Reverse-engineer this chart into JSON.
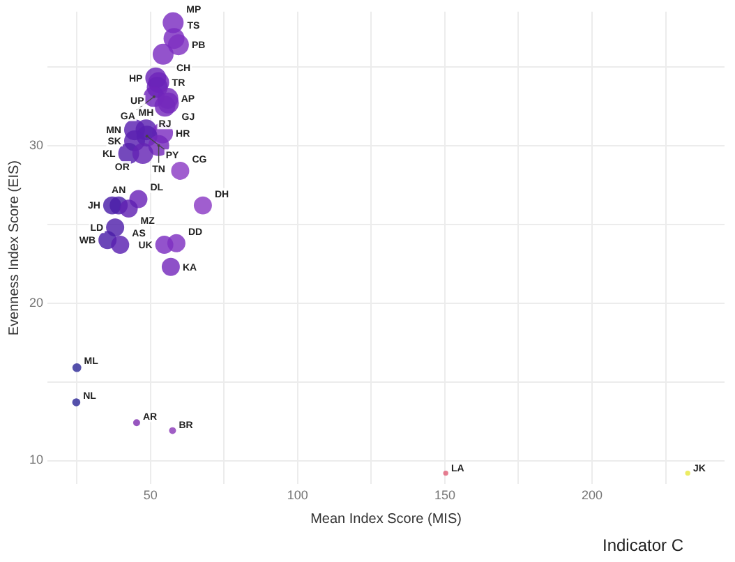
{
  "chart_data": {
    "type": "bubble",
    "xlabel": "Mean Index Score (MIS)",
    "ylabel": "Evenness Index Score (EIS)",
    "legend_title": "Indicator C",
    "xlim": [
      15,
      245
    ],
    "ylim": [
      8.5,
      38.5
    ],
    "xticks": [
      {
        "value": 25,
        "label": null
      },
      50,
      {
        "value": 75,
        "label": null
      },
      100,
      {
        "value": 125,
        "label": null
      },
      150,
      {
        "value": 175,
        "label": null
      },
      200,
      {
        "value": 225,
        "label": null
      }
    ],
    "yticks": [
      {
        "value": 15,
        "label": null
      },
      10,
      20,
      {
        "value": 25,
        "label": null
      },
      30,
      {
        "value": 35,
        "label": null
      }
    ],
    "grid": true,
    "legend": false,
    "series": [
      {
        "x": [
          57.7,
          58,
          59.5,
          54.3,
          51.8,
          52.8,
          52.3,
          55.9,
          51.2,
          56.1,
          54.9,
          44.6,
          48.5,
          54.1,
          48.8,
          44.6,
          52.8,
          42.6,
          47.4,
          60.1,
          45.9,
          37,
          39.2,
          42.6,
          67.8,
          38,
          35.4,
          39.7,
          54.7,
          58.8,
          56.9,
          25,
          24.8,
          45.3,
          57.5,
          150.3,
          232.5
        ],
        "values": [
          37.8,
          36.8,
          36.4,
          35.8,
          34.3,
          34,
          33.7,
          33,
          33.1,
          32.7,
          32.5,
          31,
          31,
          30.8,
          30.6,
          30.3,
          30,
          29.5,
          29.5,
          28.4,
          26.6,
          26.2,
          26.2,
          26,
          26.2,
          24.8,
          24,
          23.7,
          23.7,
          23.8,
          22.3,
          15.9,
          13.7,
          12.4,
          11.9,
          9.2,
          9.2
        ],
        "sizes": [
          1,
          1,
          1,
          1,
          1,
          1,
          1,
          1,
          1,
          1,
          1,
          1,
          1,
          1,
          1,
          1,
          1,
          1,
          1,
          0.75,
          0.75,
          0.75,
          0.75,
          0.75,
          0.75,
          0.75,
          0.75,
          0.75,
          0.75,
          0.75,
          0.75,
          0.18,
          0.15,
          0.11,
          0.11,
          0.06,
          0.06
        ],
        "colors": [
          "#7a2cc0",
          "#7a2cc0",
          "#7e30c0",
          "#7a2cc0",
          "#6a22b8",
          "#6e24ba",
          "#6a22b8",
          "#7428bc",
          "#6e24ba",
          "#7428bc",
          "#7428bc",
          "#5a20b0",
          "#5a20b0",
          "#7a2cc0",
          "#5a20b0",
          "#5a20b0",
          "#7428bc",
          "#5520ad",
          "#6424b4",
          "#8a3ac4",
          "#6a22b8",
          "#4a1ea8",
          "#4a1ea8",
          "#6020b2",
          "#8a3ac4",
          "#5020aa",
          "#4a1ea8",
          "#5a20b0",
          "#7a2cc0",
          "#7e30c0",
          "#7428bc",
          "#2e2a98",
          "#2e2a98",
          "#8030b0",
          "#8a3ab8",
          "#e06078",
          "#e8e840"
        ]
      }
    ],
    "annotations": [
      {
        "text": "MP",
        "x": 57.7,
        "y": 37.8
      },
      {
        "text": "TS",
        "x": 58,
        "y": 36.8
      },
      {
        "text": "PB",
        "x": 59.5,
        "y": 36.4
      },
      {
        "text": "CH",
        "x": 54.3,
        "y": 35.8
      },
      {
        "text": "HP",
        "x": 51.8,
        "y": 34.3
      },
      {
        "text": "TR",
        "x": 52.8,
        "y": 34
      },
      {
        "text": "UP",
        "x": 52.3,
        "y": 33.7
      },
      {
        "text": "AP",
        "x": 55.9,
        "y": 33
      },
      {
        "text": "GA",
        "x": 51.2,
        "y": 33.1
      },
      {
        "text": "GJ",
        "x": 56.1,
        "y": 32.7
      },
      {
        "text": "RJ",
        "x": 54.9,
        "y": 32.5
      },
      {
        "text": "MN",
        "x": 44.6,
        "y": 31
      },
      {
        "text": "MH",
        "x": 48.5,
        "y": 31
      },
      {
        "text": "HR",
        "x": 54.1,
        "y": 30.8
      },
      {
        "text": "PY",
        "x": 48.8,
        "y": 30.6
      },
      {
        "text": "SK",
        "x": 44.6,
        "y": 30.3
      },
      {
        "text": "TN",
        "x": 52.8,
        "y": 30
      },
      {
        "text": "KL",
        "x": 42.6,
        "y": 29.5
      },
      {
        "text": "OR",
        "x": 47.4,
        "y": 29.5
      },
      {
        "text": "CG",
        "x": 60.1,
        "y": 28.4
      },
      {
        "text": "DL",
        "x": 45.9,
        "y": 26.6
      },
      {
        "text": "JH",
        "x": 37,
        "y": 26.2
      },
      {
        "text": "AN",
        "x": 39.2,
        "y": 26.2
      },
      {
        "text": "MZ",
        "x": 42.6,
        "y": 26
      },
      {
        "text": "DH",
        "x": 67.8,
        "y": 26.2
      },
      {
        "text": "LD",
        "x": 38,
        "y": 24.8
      },
      {
        "text": "WB",
        "x": 35.4,
        "y": 24
      },
      {
        "text": "AS",
        "x": 39.7,
        "y": 23.7
      },
      {
        "text": "UK",
        "x": 54.7,
        "y": 23.7
      },
      {
        "text": "DD",
        "x": 58.8,
        "y": 23.8
      },
      {
        "text": "KA",
        "x": 56.9,
        "y": 22.3
      },
      {
        "text": "ML",
        "x": 25,
        "y": 15.9
      },
      {
        "text": "NL",
        "x": 24.8,
        "y": 13.7
      },
      {
        "text": "AR",
        "x": 45.3,
        "y": 12.4
      },
      {
        "text": "BR",
        "x": 57.5,
        "y": 11.9
      },
      {
        "text": "LA",
        "x": 150.3,
        "y": 9.2
      },
      {
        "text": "JK",
        "x": 232.5,
        "y": 9.2
      }
    ]
  }
}
